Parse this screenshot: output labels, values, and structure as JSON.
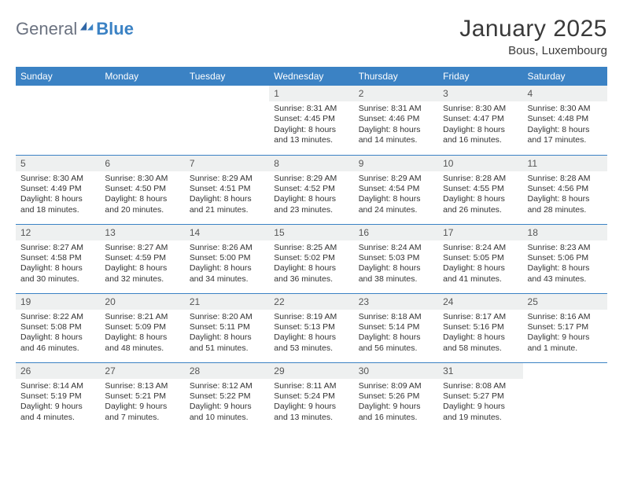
{
  "brand": {
    "word1": "General",
    "word2": "Blue"
  },
  "title": "January 2025",
  "location": "Bous, Luxembourg",
  "colors": {
    "header_bg": "#3b82c4",
    "header_fg": "#ffffff",
    "daynum_bg": "#eef0f0",
    "rule": "#3b82c4",
    "text": "#333333",
    "logo_gray": "#6b7280",
    "logo_blue": "#3b82c4"
  },
  "typography": {
    "title_fontsize": 30,
    "subtitle_fontsize": 15,
    "weekday_fontsize": 12,
    "daynum_fontsize": 12,
    "body_fontsize": 10.5
  },
  "weekdays": [
    "Sunday",
    "Monday",
    "Tuesday",
    "Wednesday",
    "Thursday",
    "Friday",
    "Saturday"
  ],
  "weeks": [
    [
      {
        "blank": true
      },
      {
        "blank": true
      },
      {
        "blank": true
      },
      {
        "day": "1",
        "sunrise": "8:31 AM",
        "sunset": "4:45 PM",
        "daylight": "8 hours and 13 minutes."
      },
      {
        "day": "2",
        "sunrise": "8:31 AM",
        "sunset": "4:46 PM",
        "daylight": "8 hours and 14 minutes."
      },
      {
        "day": "3",
        "sunrise": "8:30 AM",
        "sunset": "4:47 PM",
        "daylight": "8 hours and 16 minutes."
      },
      {
        "day": "4",
        "sunrise": "8:30 AM",
        "sunset": "4:48 PM",
        "daylight": "8 hours and 17 minutes."
      }
    ],
    [
      {
        "day": "5",
        "sunrise": "8:30 AM",
        "sunset": "4:49 PM",
        "daylight": "8 hours and 18 minutes."
      },
      {
        "day": "6",
        "sunrise": "8:30 AM",
        "sunset": "4:50 PM",
        "daylight": "8 hours and 20 minutes."
      },
      {
        "day": "7",
        "sunrise": "8:29 AM",
        "sunset": "4:51 PM",
        "daylight": "8 hours and 21 minutes."
      },
      {
        "day": "8",
        "sunrise": "8:29 AM",
        "sunset": "4:52 PM",
        "daylight": "8 hours and 23 minutes."
      },
      {
        "day": "9",
        "sunrise": "8:29 AM",
        "sunset": "4:54 PM",
        "daylight": "8 hours and 24 minutes."
      },
      {
        "day": "10",
        "sunrise": "8:28 AM",
        "sunset": "4:55 PM",
        "daylight": "8 hours and 26 minutes."
      },
      {
        "day": "11",
        "sunrise": "8:28 AM",
        "sunset": "4:56 PM",
        "daylight": "8 hours and 28 minutes."
      }
    ],
    [
      {
        "day": "12",
        "sunrise": "8:27 AM",
        "sunset": "4:58 PM",
        "daylight": "8 hours and 30 minutes."
      },
      {
        "day": "13",
        "sunrise": "8:27 AM",
        "sunset": "4:59 PM",
        "daylight": "8 hours and 32 minutes."
      },
      {
        "day": "14",
        "sunrise": "8:26 AM",
        "sunset": "5:00 PM",
        "daylight": "8 hours and 34 minutes."
      },
      {
        "day": "15",
        "sunrise": "8:25 AM",
        "sunset": "5:02 PM",
        "daylight": "8 hours and 36 minutes."
      },
      {
        "day": "16",
        "sunrise": "8:24 AM",
        "sunset": "5:03 PM",
        "daylight": "8 hours and 38 minutes."
      },
      {
        "day": "17",
        "sunrise": "8:24 AM",
        "sunset": "5:05 PM",
        "daylight": "8 hours and 41 minutes."
      },
      {
        "day": "18",
        "sunrise": "8:23 AM",
        "sunset": "5:06 PM",
        "daylight": "8 hours and 43 minutes."
      }
    ],
    [
      {
        "day": "19",
        "sunrise": "8:22 AM",
        "sunset": "5:08 PM",
        "daylight": "8 hours and 46 minutes."
      },
      {
        "day": "20",
        "sunrise": "8:21 AM",
        "sunset": "5:09 PM",
        "daylight": "8 hours and 48 minutes."
      },
      {
        "day": "21",
        "sunrise": "8:20 AM",
        "sunset": "5:11 PM",
        "daylight": "8 hours and 51 minutes."
      },
      {
        "day": "22",
        "sunrise": "8:19 AM",
        "sunset": "5:13 PM",
        "daylight": "8 hours and 53 minutes."
      },
      {
        "day": "23",
        "sunrise": "8:18 AM",
        "sunset": "5:14 PM",
        "daylight": "8 hours and 56 minutes."
      },
      {
        "day": "24",
        "sunrise": "8:17 AM",
        "sunset": "5:16 PM",
        "daylight": "8 hours and 58 minutes."
      },
      {
        "day": "25",
        "sunrise": "8:16 AM",
        "sunset": "5:17 PM",
        "daylight": "9 hours and 1 minute."
      }
    ],
    [
      {
        "day": "26",
        "sunrise": "8:14 AM",
        "sunset": "5:19 PM",
        "daylight": "9 hours and 4 minutes."
      },
      {
        "day": "27",
        "sunrise": "8:13 AM",
        "sunset": "5:21 PM",
        "daylight": "9 hours and 7 minutes."
      },
      {
        "day": "28",
        "sunrise": "8:12 AM",
        "sunset": "5:22 PM",
        "daylight": "9 hours and 10 minutes."
      },
      {
        "day": "29",
        "sunrise": "8:11 AM",
        "sunset": "5:24 PM",
        "daylight": "9 hours and 13 minutes."
      },
      {
        "day": "30",
        "sunrise": "8:09 AM",
        "sunset": "5:26 PM",
        "daylight": "9 hours and 16 minutes."
      },
      {
        "day": "31",
        "sunrise": "8:08 AM",
        "sunset": "5:27 PM",
        "daylight": "9 hours and 19 minutes."
      },
      {
        "blank": true
      }
    ]
  ]
}
